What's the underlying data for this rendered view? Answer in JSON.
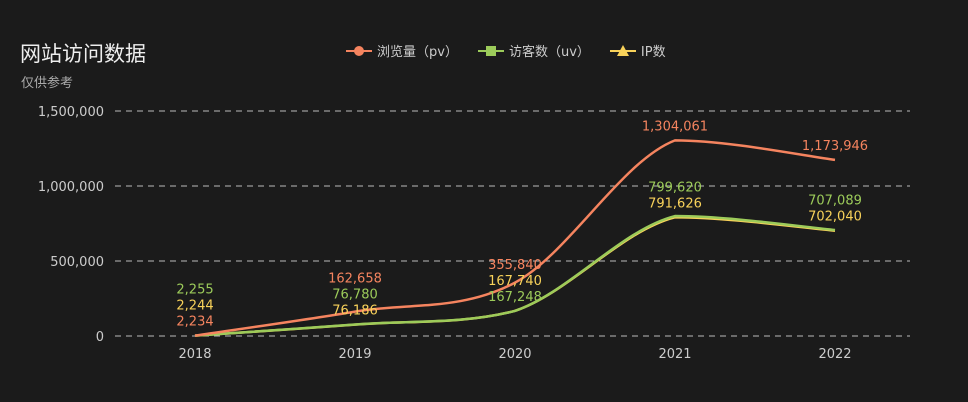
{
  "title": "网站访问数据",
  "subtitle": "仅供参考",
  "chart_data": {
    "type": "line",
    "title": "网站访问数据",
    "subtitle": "仅供参考",
    "categories": [
      "2018",
      "2019",
      "2020",
      "2021",
      "2022"
    ],
    "ylim": [
      0,
      1500000
    ],
    "yticks": [
      "0",
      "500,000",
      "1,000,000",
      "1,500,000"
    ],
    "grid": true,
    "legend_position": "top-center",
    "smooth": true,
    "series": [
      {
        "name": "浏览量（pv）",
        "color": "#f5845f",
        "marker": "circle",
        "values": [
          2234,
          162658,
          355840,
          1304061,
          1173946
        ],
        "labels": [
          "2,234",
          "162,658",
          "355,840",
          "1,304,061",
          "1,173,946"
        ]
      },
      {
        "name": "访客数（uv）",
        "color": "#9ccb5a",
        "marker": "square",
        "values": [
          2255,
          76780,
          167248,
          799620,
          707089
        ],
        "labels": [
          "2,255",
          "76,780",
          "167,248",
          "799,620",
          "707,089"
        ]
      },
      {
        "name": "IP数",
        "color": "#f8d25a",
        "marker": "triangle",
        "values": [
          2244,
          76186,
          167740,
          791626,
          702040
        ],
        "labels": [
          "2,244",
          "76,186",
          "167,740",
          "791,626",
          "702,040"
        ]
      }
    ]
  }
}
